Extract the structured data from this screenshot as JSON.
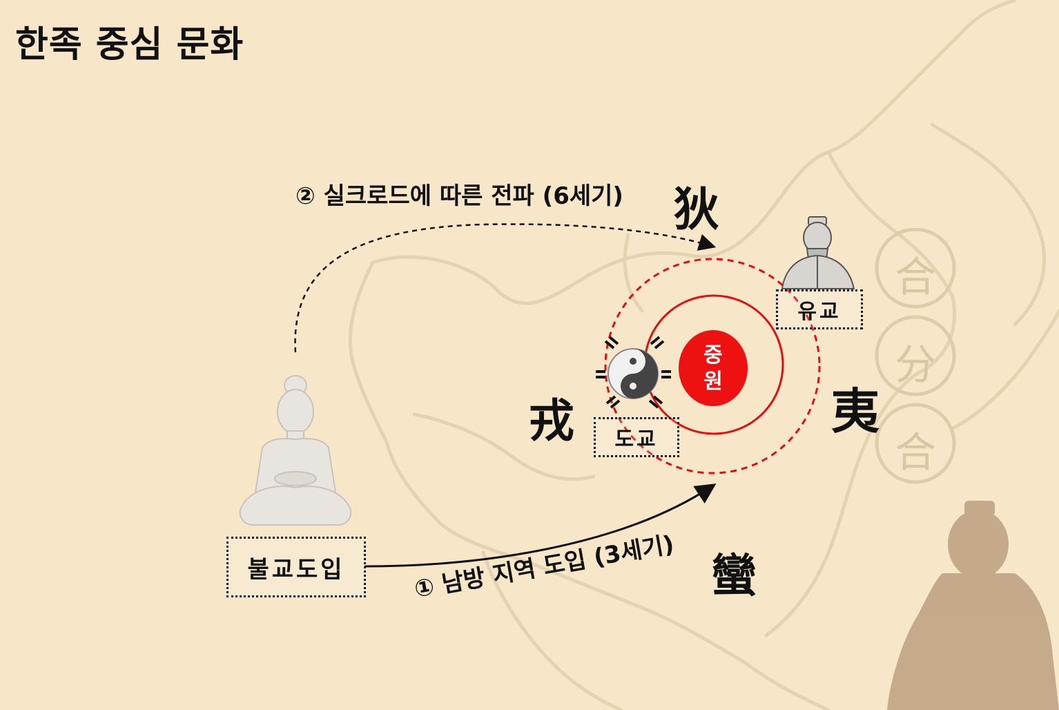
{
  "title": "한족 중심 문화",
  "route_silkroad": "② 실크로드에 따른 전파 (6세기)",
  "route_south": "① 남방 지역 도입 (3세기)",
  "center_label_line1": "중",
  "center_label_line2": "원",
  "labels": {
    "buddhism": "불교도입",
    "taoism": "도교",
    "confucianism": "유교"
  },
  "barbarians": {
    "north": "狄",
    "west": "戎",
    "east": "夷",
    "south": "蠻"
  },
  "seal_chars": [
    "合",
    "分",
    "合"
  ],
  "icons": [
    "buddha-statue-icon",
    "yin-yang-icon",
    "confucius-figure-icon",
    "silhouette-figure-icon"
  ],
  "colors": {
    "background": "#f7e7c8",
    "center_red": "#ee1111",
    "circle_red": "#dd1111",
    "text": "#111111"
  }
}
